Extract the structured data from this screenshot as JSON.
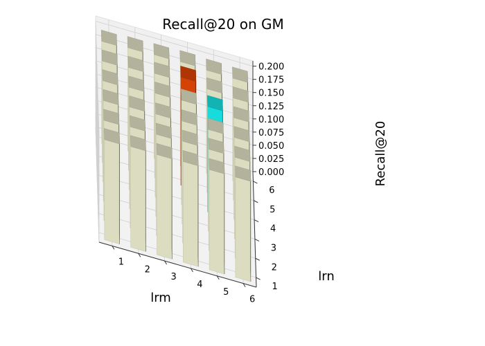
{
  "chart_data": {
    "type": "bar3d",
    "title": "Recall@20 on GM",
    "xlabel": "lrm",
    "ylabel": "lrn",
    "zlabel": "Recall@20",
    "x_ticks": [
      "1",
      "2",
      "3",
      "4",
      "5",
      "6"
    ],
    "y_ticks": [
      "1",
      "2",
      "3",
      "4",
      "5",
      "6"
    ],
    "z_ticks": [
      "0.000",
      "0.025",
      "0.050",
      "0.075",
      "0.100",
      "0.125",
      "0.150",
      "0.175",
      "0.200"
    ],
    "zlim": [
      0,
      0.21
    ],
    "values": [
      [
        0.19,
        0.19,
        0.191,
        0.192,
        0.193,
        0.194
      ],
      [
        0.191,
        0.192,
        0.193,
        0.194,
        0.195,
        0.196
      ],
      [
        0.19,
        0.192,
        0.194,
        0.197,
        0.198,
        0.197
      ],
      [
        0.191,
        0.193,
        0.195,
        0.198,
        0.205,
        0.198
      ],
      [
        0.19,
        0.192,
        0.193,
        0.2,
        0.197,
        0.196
      ],
      [
        0.19,
        0.191,
        0.192,
        0.193,
        0.194,
        0.195
      ]
    ],
    "highlight_max": {
      "lrm": 4,
      "lrn": 5,
      "color": "#d94306"
    },
    "highlight_second": {
      "lrm": 5,
      "lrn": 4,
      "color": "#18e0e0"
    },
    "bar_color": "#e0e0c4",
    "grid": true
  }
}
